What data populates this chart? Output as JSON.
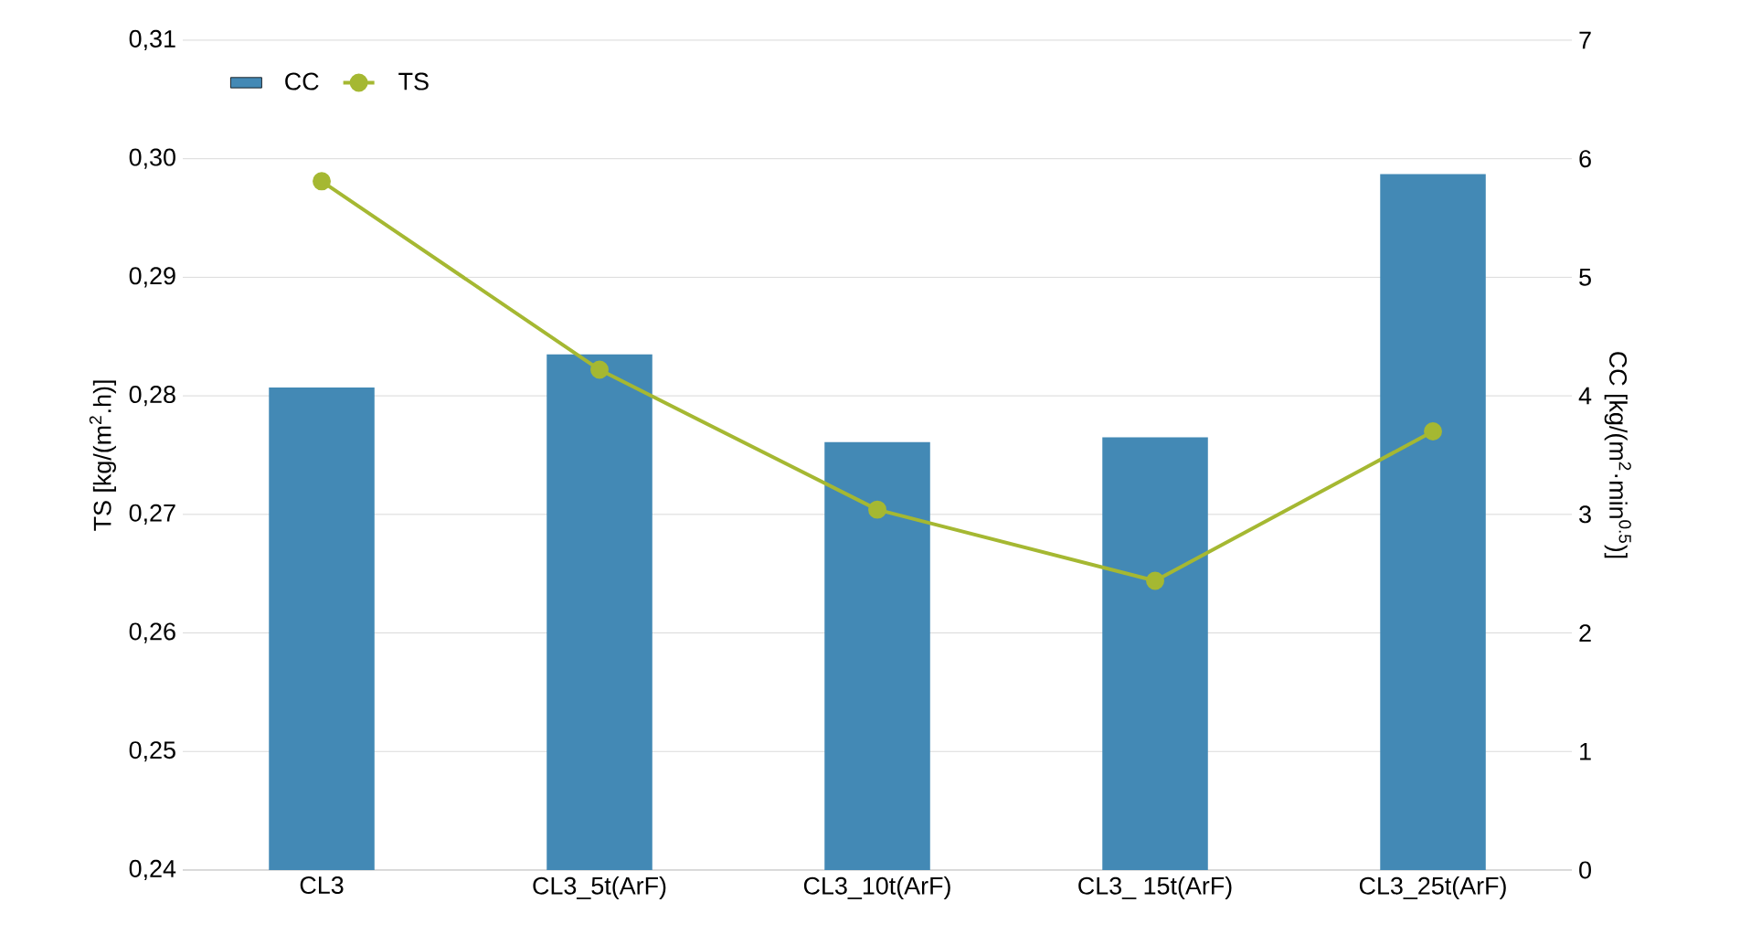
{
  "chart_data": {
    "type": "bar",
    "categories": [
      "CL3",
      "CL3_5t(ArF)",
      "CL3_10t(ArF)",
      "CL3_ 15t(ArF)",
      "CL3_25t(ArF)"
    ],
    "ylabel": "TS [kg/(m$^{2}$.h)]",
    "y2label": "CC [kg/(m$^{2}$·min$^{0.5}$)]",
    "ylim": [
      0.24,
      0.31
    ],
    "yticks": [
      {
        "value": 0.24,
        "label": "0,24"
      },
      {
        "value": 0.25,
        "label": "0,25"
      },
      {
        "value": 0.26,
        "label": "0,26"
      },
      {
        "value": 0.27,
        "label": "0,27"
      },
      {
        "value": 0.28,
        "label": "0,28"
      },
      {
        "value": 0.29,
        "label": "0,29"
      },
      {
        "value": 0.3,
        "label": "0,30"
      },
      {
        "value": 0.31,
        "label": "0,31"
      }
    ],
    "y2lim": [
      0,
      7
    ],
    "y2ticks": [
      0,
      1,
      2,
      3,
      4,
      5,
      6,
      7
    ],
    "grid": "y",
    "legend": "top left",
    "series": [
      {
        "name": "CC",
        "axis": "y2",
        "color": "#4389b5",
        "values": [
          4.07,
          4.35,
          3.61,
          3.65,
          5.87
        ]
      },
      {
        "name": "TS",
        "type": "line",
        "color": "#a5b832",
        "marker": "circle",
        "values": [
          0.2981,
          0.2822,
          0.2704,
          0.2644,
          0.277
        ]
      }
    ]
  }
}
